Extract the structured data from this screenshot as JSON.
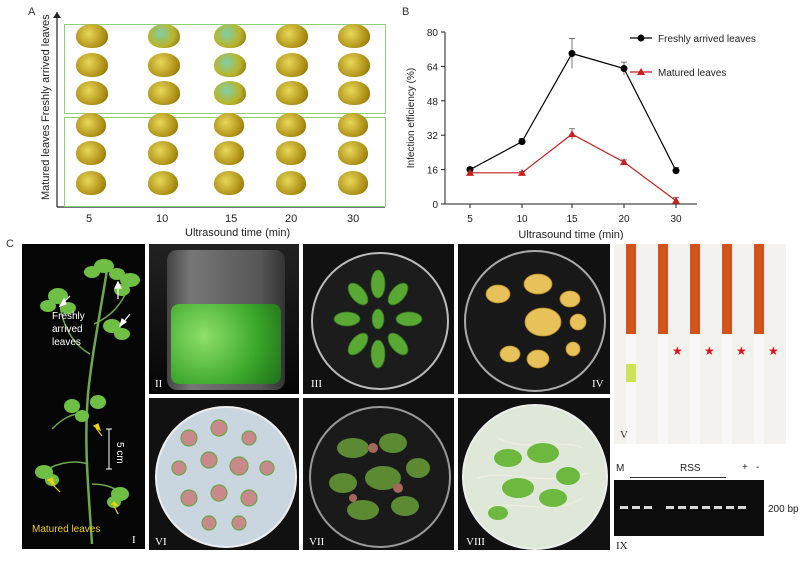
{
  "panelA": {
    "letter": "A",
    "ylabel_top": "Freshly arrived leaves",
    "ylabel_bottom": "Matured leaves",
    "xticks": [
      "5",
      "10",
      "15",
      "20",
      "30"
    ],
    "xlabel": "Ultrasound time (min)"
  },
  "panelB": {
    "letter": "B"
  },
  "chart_data": {
    "type": "line",
    "categories": [
      "5",
      "10",
      "15",
      "20",
      "30"
    ],
    "series": [
      {
        "name": "Freshly arrived leaves",
        "values": [
          16,
          29,
          70,
          63,
          15.5
        ],
        "color": "#000000"
      },
      {
        "name": "Matured leaves",
        "values": [
          14.5,
          14.5,
          32.5,
          19.5,
          1.5
        ],
        "color": "#cc1f1f"
      }
    ],
    "xlabel": "Ultrasound time (min)",
    "ylabel": "Infection efficiency (%)",
    "ylim": [
      0,
      80
    ],
    "yticks": [
      "0",
      "16",
      "32",
      "48",
      "64",
      "80"
    ],
    "legend": "top-right"
  },
  "panelC": {
    "letter": "C",
    "plant_labels": {
      "fresh": "Freshly arrived leaves",
      "scale": "5 cm",
      "matured": "Matured leaves"
    },
    "roman": [
      "I",
      "II",
      "III",
      "IV",
      "V",
      "VI",
      "VII",
      "VIII",
      "IX"
    ],
    "gel": {
      "marker": "M",
      "samples": "RSS",
      "plus": "+",
      "minus": "-",
      "band": "200 bp"
    }
  }
}
